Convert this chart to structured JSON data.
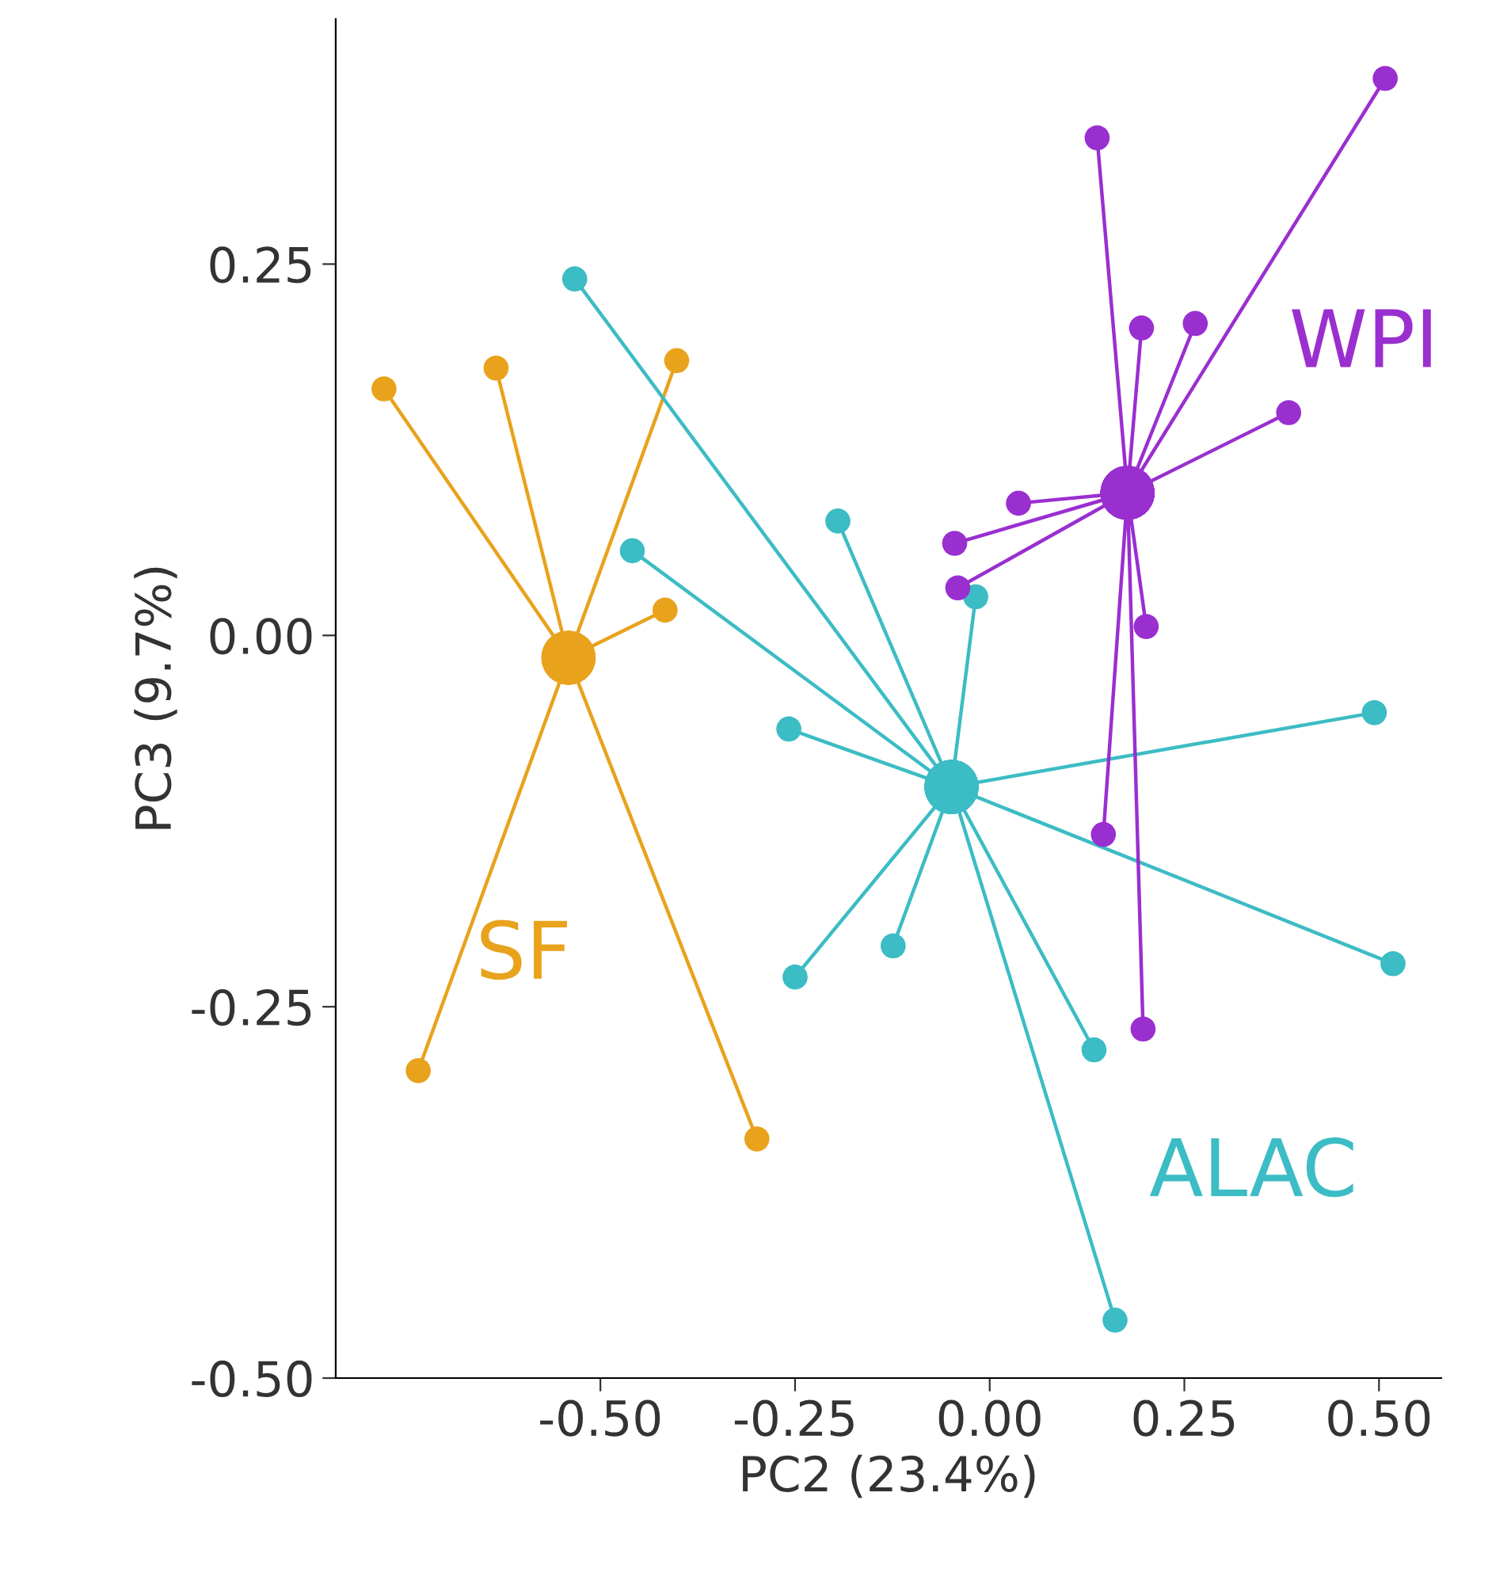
{
  "chart_data": {
    "type": "line",
    "xlabel": "PC2 (23.4%)",
    "ylabel": "PC3 (9.7%)",
    "xlim": [
      -0.84,
      0.58
    ],
    "ylim": [
      -0.5,
      0.415
    ],
    "xticks": [
      {
        "value": -0.5,
        "label": "-0.50"
      },
      {
        "value": -0.25,
        "label": "-0.25"
      },
      {
        "value": 0,
        "label": "0.00"
      },
      {
        "value": 0.25,
        "label": "0.25"
      },
      {
        "value": 0.5,
        "label": "0.50"
      }
    ],
    "yticks": [
      {
        "value": -0.5,
        "label": "-0.50"
      },
      {
        "value": -0.25,
        "label": "-0.25"
      },
      {
        "value": 0,
        "label": "0.00"
      },
      {
        "value": 0.25,
        "label": "0.25"
      }
    ],
    "grid": false,
    "legend": false,
    "marker": "circle",
    "series": [
      {
        "name": "SF",
        "color": "#e8a21c",
        "x": [
          -0.778,
          -0.541,
          -0.634,
          -0.541,
          -0.402,
          -0.541,
          -0.417,
          -0.541,
          -0.734,
          -0.541,
          -0.299
        ],
        "values": [
          0.166,
          -0.015,
          0.18,
          -0.015,
          0.185,
          -0.015,
          0.017,
          -0.015,
          -0.293,
          -0.015,
          -0.339
        ]
      },
      {
        "name": "ALAC",
        "color": "#3cbcc4",
        "x": [
          -0.533,
          -0.049,
          -0.459,
          -0.049,
          -0.195,
          -0.049,
          -0.018,
          -0.049,
          -0.258,
          -0.049,
          -0.25,
          -0.049,
          -0.124,
          -0.049,
          0.134,
          -0.049,
          0.161,
          -0.049,
          0.494,
          -0.049,
          0.518
        ],
        "values": [
          0.24,
          -0.102,
          0.057,
          -0.102,
          0.077,
          -0.102,
          0.026,
          -0.102,
          -0.063,
          -0.102,
          -0.23,
          -0.102,
          -0.209,
          -0.102,
          -0.279,
          -0.102,
          -0.461,
          -0.102,
          -0.052,
          -0.102,
          -0.221
        ]
      },
      {
        "name": "WPI",
        "color": "#9a2fd0",
        "x": [
          0.138,
          0.177,
          0.508,
          0.177,
          0.195,
          0.177,
          0.264,
          0.177,
          0.384,
          0.177,
          0.037,
          0.177,
          -0.045,
          0.177,
          -0.041,
          0.177,
          0.201,
          0.177,
          0.146,
          0.177,
          0.197
        ],
        "values": [
          0.335,
          0.096,
          0.375,
          0.096,
          0.207,
          0.096,
          0.21,
          0.096,
          0.15,
          0.096,
          0.089,
          0.096,
          0.062,
          0.096,
          0.032,
          0.096,
          0.006,
          0.096,
          -0.134,
          0.096,
          -0.265
        ]
      }
    ]
  }
}
